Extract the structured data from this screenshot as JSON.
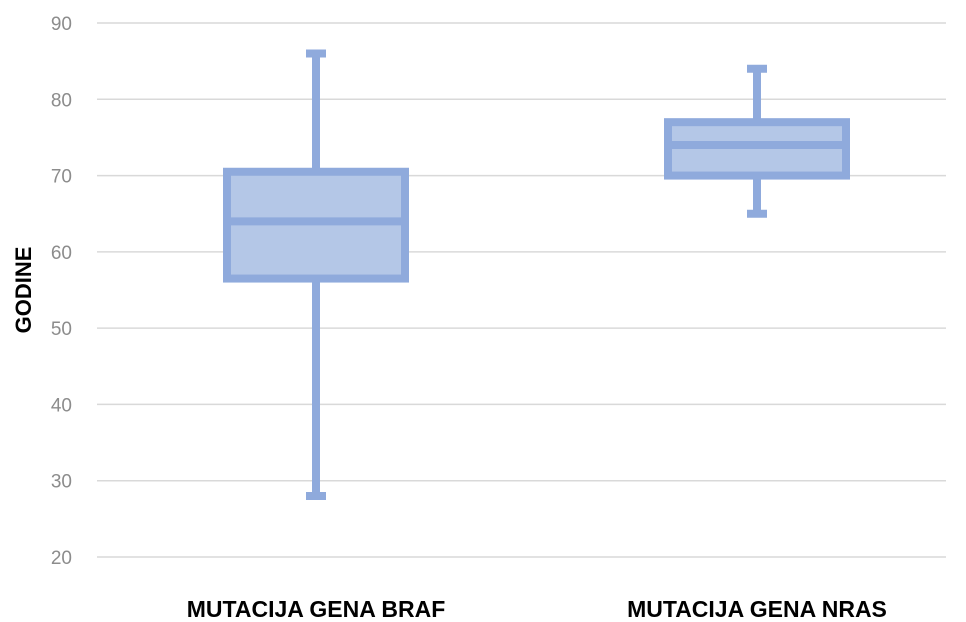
{
  "chart_data": {
    "type": "boxplot",
    "title": "",
    "xlabel": "",
    "ylabel": "GODINE",
    "ylim": [
      20,
      90
    ],
    "yticks": [
      20,
      30,
      40,
      50,
      60,
      70,
      80,
      90
    ],
    "grid": true,
    "legend": "none",
    "color": "#8faadc",
    "fill_color": "#b4c7e7",
    "categories": [
      "MUTACIJA GENA BRAF",
      "MUTACIJA GENA NRAS"
    ],
    "boxes": [
      {
        "category": "MUTACIJA GENA BRAF",
        "min": 28,
        "q1": 56.5,
        "median": 64,
        "q3": 70.5,
        "max": 86
      },
      {
        "category": "MUTACIJA GENA NRAS",
        "min": 65,
        "q1": 70,
        "median": 74,
        "q3": 77,
        "max": 84
      }
    ]
  }
}
